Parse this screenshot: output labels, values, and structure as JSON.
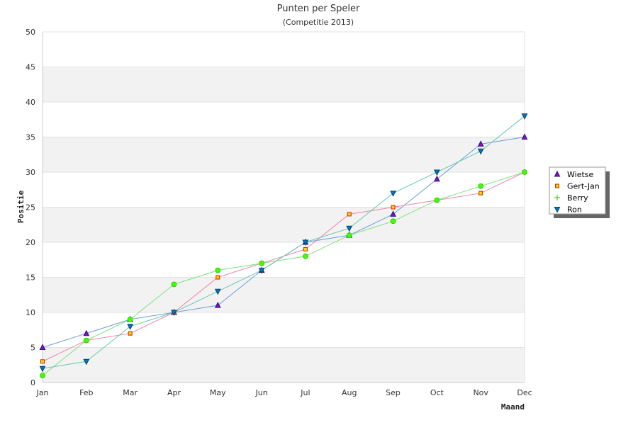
{
  "chart_data": {
    "type": "line",
    "title": "Punten per Speler",
    "subtitle": "(Competitie 2013)",
    "xlabel": "Maand",
    "ylabel": "Positie",
    "categories": [
      "Jan",
      "Feb",
      "Mar",
      "Apr",
      "May",
      "Jun",
      "Jul",
      "Aug",
      "Sep",
      "Oct",
      "Nov",
      "Dec"
    ],
    "ylim": [
      0,
      50
    ],
    "yticks": [
      0,
      5,
      10,
      15,
      20,
      25,
      30,
      35,
      40,
      45,
      50
    ],
    "grid": "alternating horizontal bands",
    "legend_position": "right",
    "series": [
      {
        "name": "Wietse",
        "marker": "triangle-up",
        "line_color": "#6a9fd8",
        "marker_fill": "#a000c8",
        "marker_stroke": "#1a1a80",
        "values": [
          5,
          7,
          9,
          10,
          11,
          16,
          20,
          21,
          24,
          29,
          34,
          35
        ]
      },
      {
        "name": "Gert-Jan",
        "marker": "square",
        "line_color": "#ee82a8",
        "marker_fill": "#ffd400",
        "marker_stroke": "#d02000",
        "values": [
          3,
          6,
          7,
          10,
          15,
          17,
          19,
          24,
          25,
          26,
          27,
          30
        ]
      },
      {
        "name": "Berry",
        "marker": "plus",
        "line_color": "#7ee07e",
        "marker_fill": "#40ff00",
        "marker_stroke": "#30c000",
        "values": [
          1,
          6,
          9,
          14,
          16,
          17,
          18,
          21,
          23,
          26,
          28,
          30
        ]
      },
      {
        "name": "Ron",
        "marker": "triangle-down",
        "line_color": "#66c9b0",
        "marker_fill": "#0077cc",
        "marker_stroke": "#004466",
        "values": [
          2,
          3,
          8,
          10,
          13,
          16,
          20,
          22,
          27,
          30,
          33,
          38
        ]
      }
    ]
  }
}
